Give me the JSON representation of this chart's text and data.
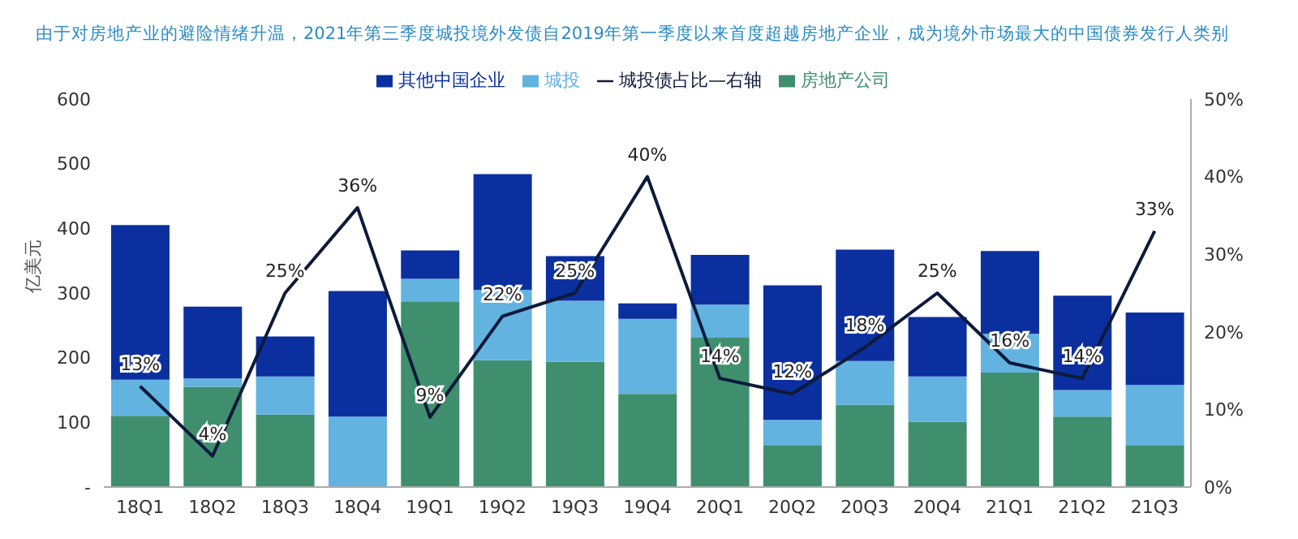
{
  "chart_data": {
    "type": "bar",
    "title": "由于对房地产业的避险情绪升温，2021年第三季度城投境外发债自2019年第一季度以来首度超越房地产企业，成为境外市场最大的中国债券发行人类别",
    "ylabel": "亿美元",
    "categories": [
      "18Q1",
      "18Q2",
      "18Q3",
      "18Q4",
      "19Q1",
      "19Q2",
      "19Q3",
      "19Q4",
      "20Q1",
      "20Q2",
      "20Q3",
      "20Q4",
      "21Q1",
      "21Q2",
      "21Q3"
    ],
    "stacked": true,
    "series": [
      {
        "name": "房地产公司",
        "color": "#3f8f6e",
        "values": [
          110,
          155,
          112,
          0,
          287,
          196,
          194,
          144,
          231,
          65,
          127,
          101,
          177,
          109,
          65
        ]
      },
      {
        "name": "城投",
        "color": "#62b3e0",
        "values": [
          56,
          13,
          59,
          109,
          35,
          109,
          94,
          116,
          51,
          39,
          68,
          70,
          60,
          41,
          93
        ]
      },
      {
        "name": "其他中国企业",
        "color": "#0b2f9e",
        "values": [
          239,
          111,
          62,
          194,
          44,
          179,
          69,
          24,
          77,
          208,
          172,
          92,
          128,
          146,
          112
        ]
      },
      {
        "name": "城投债占比—右轴",
        "type": "line",
        "axis": "y2",
        "color": "#0d1a3a",
        "marker": "none",
        "values": [
          13,
          4,
          25,
          36,
          9,
          22,
          25,
          40,
          14,
          12,
          18,
          25,
          16,
          14,
          33
        ],
        "value_labels": [
          "13%",
          "4%",
          "25%",
          "36%",
          "9%",
          "22%",
          "25%",
          "40%",
          "14%",
          "12%",
          "18%",
          "25%",
          "16%",
          "14%",
          "33%"
        ]
      }
    ],
    "ylim": [
      0,
      600
    ],
    "yticks": [
      {
        "value": 0,
        "label": "-"
      },
      100,
      200,
      300,
      400,
      500,
      600
    ],
    "y2lim": [
      0,
      50
    ],
    "y2ticks": [
      {
        "value": 0,
        "label": "0%"
      },
      {
        "value": 10,
        "label": "10%"
      },
      {
        "value": 20,
        "label": "20%"
      },
      {
        "value": 30,
        "label": "30%"
      },
      {
        "value": 40,
        "label": "40%"
      },
      {
        "value": 50,
        "label": "50%"
      }
    ],
    "grid": false,
    "legend": "top"
  }
}
